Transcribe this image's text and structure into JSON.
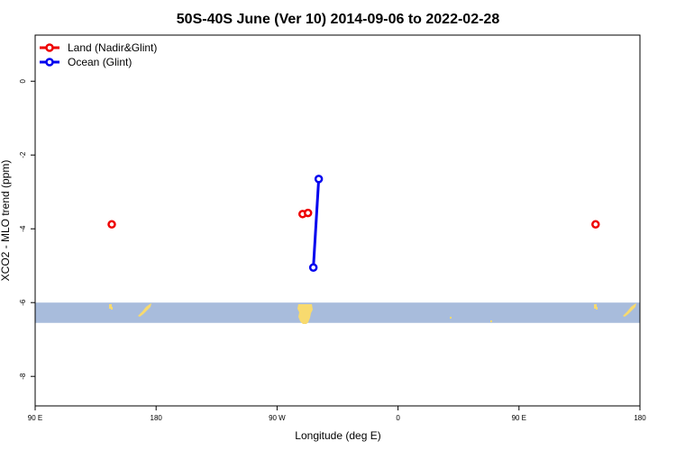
{
  "chart_data": {
    "type": "line",
    "title": "50S-40S June (Ver 10)   2014-09-06 to 2022-02-28",
    "xlabel": "Longitude (deg E)",
    "ylabel": "XCO2 - MLO trend (ppm)",
    "x_ticks": [
      {
        "value": 90,
        "label": "90 E"
      },
      {
        "value": 180,
        "label": "180"
      },
      {
        "value": 270,
        "label": "90 W"
      },
      {
        "value": 360,
        "label": "0"
      },
      {
        "value": 450,
        "label": "90 E"
      },
      {
        "value": 540,
        "label": "180"
      }
    ],
    "y_ticks": [
      {
        "value": 0,
        "label": "0"
      },
      {
        "value": -2,
        "label": "-2"
      },
      {
        "value": -4,
        "label": "-4"
      },
      {
        "value": -6,
        "label": "-6"
      },
      {
        "value": -8,
        "label": "-8"
      }
    ],
    "xlim": [
      90,
      540
    ],
    "ylim": [
      -8.8,
      1.25
    ],
    "grid": false,
    "legend_position": "top-left",
    "series": [
      {
        "name": "Land (Nadir&Glint)",
        "color": "#ee0000",
        "connect": false,
        "points": [
          {
            "x": 147,
            "y": -3.88
          },
          {
            "x": 289,
            "y": -3.6
          },
          {
            "x": 293,
            "y": -3.57
          },
          {
            "x": 507,
            "y": -3.88
          }
        ]
      },
      {
        "name": "Ocean (Glint)",
        "color": "#0000ee",
        "connect": true,
        "points": [
          {
            "x": 297,
            "y": -5.05
          },
          {
            "x": 301,
            "y": -2.65
          }
        ]
      }
    ],
    "map_strip": {
      "lat_range": [
        -50,
        -40
      ],
      "y_range": [
        -6.55,
        -6.0
      ],
      "ocean_color": "#a8bcdc",
      "land_color": "#f8da6e"
    }
  }
}
